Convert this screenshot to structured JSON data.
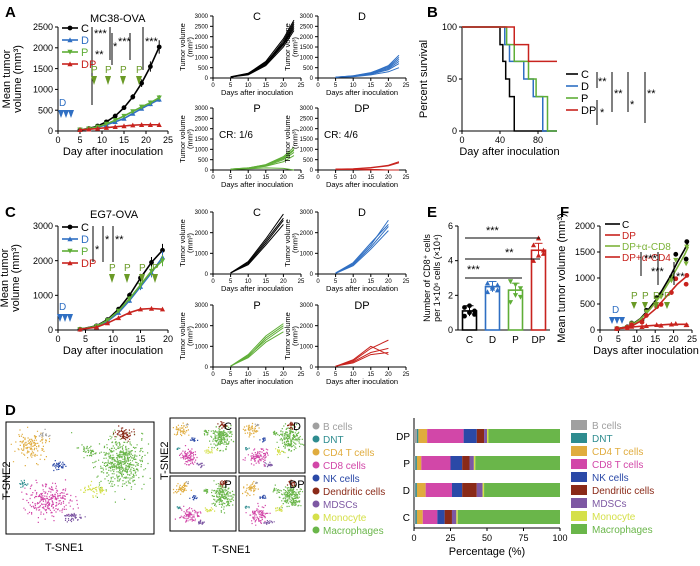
{
  "panel_labels": {
    "A": "A",
    "B": "B",
    "C": "C",
    "D": "D",
    "E": "E",
    "F": "F"
  },
  "colors": {
    "C": "#000000",
    "D": "#2f6fc3",
    "P": "#5fae37",
    "DP": "#c8231e",
    "DP_CD8": "#7db33a",
    "DP_CD4": "#c8231e",
    "gray": "#9a9a9a"
  },
  "panelA": {
    "title": "MC38-OVA",
    "treat_D": "D",
    "treat_P": "P",
    "sig": [
      "***",
      "**",
      "*",
      "***",
      "***"
    ],
    "legend": [
      {
        "key": "C",
        "label": "C"
      },
      {
        "key": "D",
        "label": "D"
      },
      {
        "key": "P",
        "label": "P"
      },
      {
        "key": "DP",
        "label": "DP"
      }
    ],
    "small_titles": [
      "C",
      "D",
      "P",
      "DP"
    ],
    "cr_P": "CR: 1/6",
    "cr_DP": "CR: 4/6"
  },
  "panelB": {
    "sig": [
      "**",
      "*",
      "**",
      "*",
      "**"
    ]
  },
  "panelC": {
    "title": "EG7-OVA",
    "treat_D": "D",
    "treat_P": "P",
    "sig": [
      "*",
      "*",
      "**"
    ],
    "small_titles": [
      "C",
      "D",
      "P",
      "DP"
    ]
  },
  "panelE": {
    "sig": [
      "***",
      "***",
      "**"
    ]
  },
  "panelF": {
    "sig": [
      "***",
      "***",
      "**"
    ],
    "treat_D": "D",
    "treat_P": "P",
    "legend": [
      {
        "key": "C",
        "label": "C"
      },
      {
        "key": "DP",
        "label": "DP"
      },
      {
        "key": "DP_CD8",
        "label": "DP+α-CD8"
      },
      {
        "key": "DP_CD4",
        "label": "DP+α-CD4"
      }
    ]
  },
  "panelD": {
    "tsne_x": "T-SNE1",
    "tsne_y": "T-SNE2",
    "small_titles": [
      "C",
      "D",
      "P",
      "DP"
    ],
    "legend": [
      "B cells",
      "DNT",
      "CD4 T cells",
      "CD8 cells",
      "NK cells",
      "Dendritic cells",
      "MDSCs",
      "Monocyte",
      "Macrophages"
    ],
    "legend_right": [
      "B cells",
      "DNT",
      "CD4 T cells",
      "CD8 T cells",
      "NK cells",
      "Dendritic cells",
      "MDSCs",
      "Monocyte",
      "Macrophages"
    ],
    "legend_colors": [
      "#a0a0a0",
      "#2e8c8f",
      "#e0ac3e",
      "#d247a8",
      "#2b49a7",
      "#8a2a18",
      "#7d58a3",
      "#d5e04a",
      "#6ab64a"
    ]
  },
  "chart_data": [
    {
      "id": "A-main",
      "type": "line",
      "title": "MC38-OVA",
      "xlabel": "Day after inoculation",
      "ylabel": "Mean tumor volume (mm³)",
      "xlim": [
        0,
        25
      ],
      "ylim": [
        0,
        2500
      ],
      "xticks": [
        0,
        5,
        10,
        15,
        20,
        25
      ],
      "yticks": [
        0,
        500,
        1000,
        1500,
        2000,
        2500
      ],
      "x": [
        5,
        7,
        9,
        11,
        13,
        15,
        17,
        19,
        21,
        23
      ],
      "series": [
        {
          "name": "C",
          "values": [
            30,
            60,
            120,
            220,
            360,
            560,
            820,
            1150,
            1550,
            2020
          ]
        },
        {
          "name": "D",
          "values": [
            30,
            50,
            90,
            150,
            220,
            300,
            420,
            540,
            650,
            760
          ]
        },
        {
          "name": "P",
          "values": [
            30,
            55,
            100,
            170,
            260,
            360,
            470,
            580,
            680,
            800
          ]
        },
        {
          "name": "DP",
          "values": [
            30,
            40,
            60,
            80,
            100,
            120,
            140,
            150,
            150,
            150
          ]
        }
      ]
    },
    {
      "id": "A-small",
      "type": "line",
      "xlabel": "Days after inoculation",
      "ylabel": "Tumor volume (mm³)",
      "xlim": [
        0,
        25
      ],
      "ylim": [
        0,
        3000
      ],
      "xticks": [
        0,
        5,
        10,
        15,
        20,
        25
      ],
      "yticks": [
        0,
        500,
        1000,
        1500,
        2000,
        2500,
        3000
      ],
      "x": [
        5,
        10,
        15,
        20,
        23
      ],
      "groups": [
        {
          "name": "C",
          "color_key": "C",
          "series": [
            [
              50,
              200,
              700,
              1800,
              2700
            ],
            [
              50,
              180,
              650,
              1600,
              2400
            ],
            [
              40,
              220,
              800,
              1900,
              2800
            ],
            [
              50,
              150,
              600,
              1500,
              2300
            ],
            [
              60,
              230,
              750,
              1700,
              2600
            ],
            [
              40,
              200,
              700,
              1650,
              2500
            ]
          ]
        },
        {
          "name": "D",
          "color_key": "D",
          "series": [
            [
              40,
              100,
              250,
              600,
              1100
            ],
            [
              40,
              80,
              200,
              450,
              800
            ],
            [
              30,
              90,
              230,
              500,
              900
            ],
            [
              40,
              70,
              180,
              400,
              700
            ],
            [
              30,
              110,
              260,
              550,
              1000
            ],
            [
              40,
              60,
              150,
              300,
              500
            ]
          ]
        },
        {
          "name": "P",
          "color_key": "P",
          "series": [
            [
              40,
              100,
              260,
              650,
              1100
            ],
            [
              40,
              90,
              240,
              600,
              1000
            ],
            [
              30,
              80,
              200,
              500,
              850
            ],
            [
              40,
              70,
              180,
              400,
              700
            ],
            [
              30,
              60,
              100,
              80,
              0
            ],
            [
              40,
              100,
              250,
              550,
              950
            ]
          ]
        },
        {
          "name": "DP",
          "color_key": "DP",
          "series": [
            [
              40,
              50,
              100,
              200,
              350
            ],
            [
              40,
              60,
              120,
              230,
              400
            ],
            [
              30,
              30,
              20,
              0,
              0
            ],
            [
              40,
              40,
              30,
              0,
              0
            ],
            [
              30,
              30,
              0,
              0,
              0
            ],
            [
              40,
              30,
              0,
              0,
              0
            ]
          ]
        }
      ]
    },
    {
      "id": "B",
      "type": "line",
      "title": "",
      "xlabel": "Day after inoculation",
      "ylabel": "Percent survival",
      "xlim": [
        0,
        100
      ],
      "ylim": [
        0,
        100
      ],
      "xticks": [
        0,
        40,
        80
      ],
      "yticks": [
        0,
        50,
        100
      ],
      "series": [
        {
          "name": "C",
          "x": [
            0,
            37,
            40,
            43,
            46,
            50,
            55,
            100
          ],
          "values": [
            100,
            100,
            83,
            67,
            50,
            33,
            0,
            0
          ]
        },
        {
          "name": "D",
          "x": [
            0,
            40,
            45,
            50,
            65,
            75,
            85,
            100
          ],
          "values": [
            100,
            100,
            83,
            67,
            50,
            33,
            0,
            0
          ]
        },
        {
          "name": "P",
          "x": [
            0,
            40,
            47,
            55,
            70,
            78,
            90,
            100
          ],
          "values": [
            100,
            100,
            83,
            67,
            50,
            33,
            0,
            0
          ]
        },
        {
          "name": "DP",
          "x": [
            0,
            45,
            55,
            70,
            100
          ],
          "values": [
            100,
            100,
            83,
            67,
            67
          ]
        }
      ]
    },
    {
      "id": "C-main",
      "type": "line",
      "title": "EG7-OVA",
      "xlabel": "Day after inoculation",
      "ylabel": "Mean tumor volume (mm³)",
      "xlim": [
        0,
        20
      ],
      "ylim": [
        0,
        3000
      ],
      "xticks": [
        0,
        5,
        10,
        15,
        20
      ],
      "yticks": [
        0,
        1000,
        2000,
        3000
      ],
      "x": [
        4,
        7,
        9,
        11,
        13,
        15,
        17,
        19
      ],
      "series": [
        {
          "name": "C",
          "values": [
            20,
            120,
            300,
            600,
            1000,
            1500,
            1950,
            2300
          ]
        },
        {
          "name": "D",
          "values": [
            20,
            100,
            250,
            500,
            850,
            1250,
            1650,
            2100
          ]
        },
        {
          "name": "P",
          "values": [
            20,
            110,
            280,
            550,
            900,
            1300,
            1700,
            2000
          ]
        },
        {
          "name": "DP",
          "values": [
            20,
            80,
            200,
            350,
            500,
            600,
            620,
            600
          ]
        }
      ]
    },
    {
      "id": "C-small",
      "type": "line",
      "xlabel": "Days after inoculation",
      "ylabel": "Tumor volume (mm³)",
      "xlim": [
        0,
        25
      ],
      "ylim": [
        0,
        3000
      ],
      "xticks": [
        0,
        5,
        10,
        15,
        20,
        25
      ],
      "yticks": [
        0,
        1000,
        2000,
        3000
      ],
      "x": [
        5,
        10,
        15,
        20
      ],
      "groups": [
        {
          "name": "C",
          "color_key": "C",
          "series": [
            [
              50,
              600,
              1700,
              2900
            ],
            [
              40,
              500,
              1500,
              2600
            ],
            [
              60,
              450,
              1400,
              2400
            ],
            [
              50,
              550,
              1600,
              2700
            ]
          ]
        },
        {
          "name": "D",
          "color_key": "D",
          "series": [
            [
              40,
              500,
              1400,
              2600
            ],
            [
              40,
              450,
              1300,
              2300
            ],
            [
              30,
              400,
              1200,
              2100
            ],
            [
              50,
              550,
              1500,
              2400
            ]
          ]
        },
        {
          "name": "P",
          "color_key": "P",
          "series": [
            [
              40,
              600,
              1500,
              2100
            ],
            [
              40,
              500,
              1400,
              2000
            ],
            [
              30,
              550,
              1300,
              1900
            ],
            [
              50,
              450,
              1200,
              1700
            ]
          ]
        },
        {
          "name": "DP",
          "color_key": "DP",
          "series": [
            [
              30,
              300,
              900,
              1300
            ],
            [
              40,
              250,
              700,
              900
            ],
            [
              30,
              350,
              1000,
              600
            ],
            [
              40,
              200,
              600,
              700
            ]
          ]
        }
      ]
    },
    {
      "id": "E",
      "type": "bar",
      "xlabel": "",
      "ylabel": "Number of CD8⁺ cells per 1×10⁶ cells (×10⁴)",
      "categories": [
        "C",
        "D",
        "P",
        "DP"
      ],
      "values": [
        1.1,
        2.5,
        2.3,
        4.6
      ],
      "errors": [
        0.3,
        0.3,
        0.4,
        0.4
      ],
      "ylim": [
        0,
        6
      ],
      "yticks": [
        0,
        2,
        4,
        6
      ],
      "points": [
        [
          0.8,
          1.0,
          1.1,
          1.3,
          1.4,
          0.9
        ],
        [
          2.2,
          2.4,
          2.6,
          2.7,
          2.5,
          2.3
        ],
        [
          1.6,
          2.0,
          2.4,
          2.8,
          2.6,
          1.9
        ],
        [
          4.0,
          4.3,
          4.6,
          4.9,
          5.3,
          4.4
        ]
      ]
    },
    {
      "id": "F",
      "type": "scatter",
      "xlabel": "Days after inoculation",
      "ylabel": "Mean tumor volume (mm³)",
      "xlim": [
        0,
        25
      ],
      "ylim": [
        0,
        2000
      ],
      "xticks": [
        0,
        5,
        10,
        15,
        20,
        25
      ],
      "yticks": [
        0,
        500,
        1000,
        1500,
        2000
      ],
      "x": [
        5,
        7,
        9,
        11,
        13,
        15,
        17,
        19,
        21,
        23,
        24
      ],
      "series": [
        {
          "name": "C",
          "values": [
            30,
            60,
            120,
            220,
            380,
            560,
            780,
            1020,
            1300,
            1550,
            1700
          ]
        },
        {
          "name": "DP",
          "values": [
            30,
            40,
            60,
            70,
            80,
            90,
            100,
            110,
            110,
            110,
            100
          ]
        },
        {
          "name": "DP+α-CD8",
          "values": [
            30,
            55,
            110,
            210,
            350,
            520,
            720,
            950,
            1200,
            1450,
            1600
          ]
        },
        {
          "name": "DP+α-CD4",
          "values": [
            30,
            50,
            90,
            170,
            280,
            400,
            560,
            720,
            880,
            1000,
            1050
          ]
        }
      ]
    },
    {
      "id": "D-stacked",
      "type": "bar",
      "orientation": "horizontal",
      "stacked": true,
      "xlabel": "Percentage (%)",
      "ylabel": "",
      "categories": [
        "DP",
        "P",
        "D",
        "C"
      ],
      "xlim": [
        0,
        100
      ],
      "xticks": [
        0,
        25,
        50,
        75,
        100
      ],
      "series": [
        {
          "name": "B cells",
          "values": [
            2,
            1,
            1,
            1
          ]
        },
        {
          "name": "DNT",
          "values": [
            1,
            1,
            1,
            1
          ]
        },
        {
          "name": "CD4 T cells",
          "values": [
            6,
            3,
            6,
            4
          ]
        },
        {
          "name": "CD8 T cells",
          "values": [
            25,
            20,
            18,
            10
          ]
        },
        {
          "name": "NK cells",
          "values": [
            9,
            8,
            7,
            5
          ]
        },
        {
          "name": "Dendritic cells",
          "values": [
            5,
            5,
            10,
            5
          ]
        },
        {
          "name": "MDSCs",
          "values": [
            2,
            3,
            4,
            3
          ]
        },
        {
          "name": "Monocyte",
          "values": [
            1,
            1,
            1,
            1
          ]
        },
        {
          "name": "Macrophages",
          "values": [
            49,
            58,
            52,
            70
          ]
        }
      ]
    }
  ]
}
